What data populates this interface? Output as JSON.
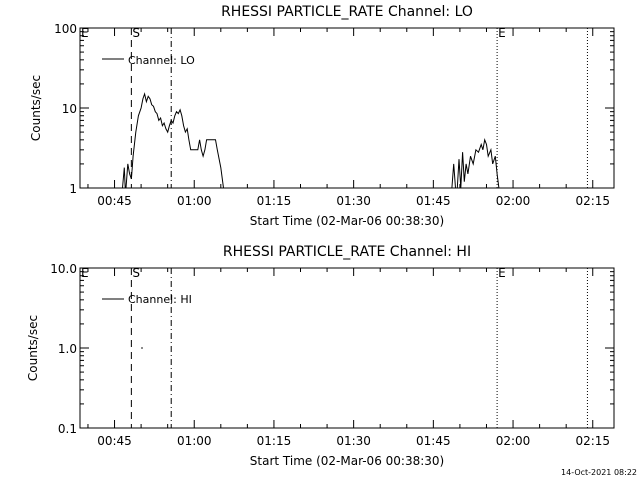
{
  "chart_data": [
    {
      "type": "line",
      "title": "RHESSI PARTICLE_RATE Channel: LO",
      "xlabel": "Start Time (02-Mar-06 00:38:30)",
      "ylabel": "Counts/sec",
      "yscale": "log",
      "ylim": [
        1,
        100
      ],
      "y_ticks": [
        "1",
        "10",
        "100"
      ],
      "x_ticks": [
        "00:45",
        "01:00",
        "01:15",
        "01:30",
        "01:45",
        "02:00",
        "02:15"
      ],
      "xlim": [
        "00:38:30",
        "02:19:00"
      ],
      "legend": "Channel: LO",
      "legend_position": "top-left",
      "markers": [
        {
          "label": "E",
          "time": "00:38:30",
          "style": "none"
        },
        {
          "label": "S",
          "time": "00:48:10",
          "style": "dashed"
        },
        {
          "label": "",
          "time": "00:55:40",
          "style": "dash-dot"
        },
        {
          "label": "E",
          "time": "01:57:00",
          "style": "dotted"
        },
        {
          "label": "",
          "time": "02:14:00",
          "style": "dotted"
        }
      ],
      "series": [
        {
          "name": "Channel: LO",
          "segments": [
            [
              [
                "00:46:30",
                1
              ],
              [
                "00:46:50",
                1.8
              ],
              [
                "00:47:00",
                1
              ],
              [
                "00:47:10",
                1
              ],
              [
                "00:47:30",
                2
              ],
              [
                "00:47:50",
                1.5
              ],
              [
                "00:48:10",
                1.3
              ],
              [
                "00:48:30",
                2.5
              ],
              [
                "00:49:00",
                5
              ],
              [
                "00:49:30",
                8
              ],
              [
                "00:50:00",
                10
              ],
              [
                "00:50:20",
                13
              ],
              [
                "00:50:40",
                15
              ],
              [
                "00:51:00",
                12
              ],
              [
                "00:51:20",
                14
              ],
              [
                "00:51:40",
                13
              ],
              [
                "00:52:00",
                11
              ],
              [
                "00:52:20",
                10.5
              ],
              [
                "00:52:40",
                9
              ],
              [
                "00:53:00",
                8.5
              ],
              [
                "00:53:20",
                7
              ],
              [
                "00:53:40",
                7.5
              ],
              [
                "00:54:00",
                6
              ],
              [
                "00:54:20",
                6.5
              ],
              [
                "00:54:40",
                5.5
              ],
              [
                "00:55:00",
                5
              ],
              [
                "00:55:20",
                6
              ],
              [
                "00:55:40",
                7
              ],
              [
                "00:56:00",
                6.5
              ],
              [
                "00:56:20",
                8
              ],
              [
                "00:56:40",
                9
              ],
              [
                "00:57:00",
                8.5
              ],
              [
                "00:57:20",
                9.5
              ],
              [
                "00:57:40",
                8
              ],
              [
                "00:58:00",
                6
              ],
              [
                "00:58:20",
                5
              ],
              [
                "00:58:40",
                5.5
              ],
              [
                "00:59:00",
                4
              ],
              [
                "00:59:20",
                3
              ],
              [
                "01:00:00",
                3
              ],
              [
                "01:00:40",
                3
              ],
              [
                "01:01:00",
                4
              ],
              [
                "01:01:20",
                3
              ],
              [
                "01:01:40",
                2.5
              ],
              [
                "01:02:00",
                3
              ],
              [
                "01:02:20",
                4
              ],
              [
                "01:03:20",
                4
              ],
              [
                "01:04:00",
                4
              ],
              [
                "01:04:20",
                3
              ],
              [
                "01:05:00",
                1.8
              ],
              [
                "01:05:30",
                1
              ]
            ],
            [
              [
                "01:48:30",
                1
              ],
              [
                "01:48:50",
                2
              ],
              [
                "01:49:10",
                1
              ],
              [
                "01:49:30",
                1
              ],
              [
                "01:49:50",
                2.3
              ],
              [
                "01:50:10",
                1
              ],
              [
                "01:50:30",
                2.8
              ],
              [
                "01:50:50",
                1.2
              ],
              [
                "01:51:10",
                2
              ],
              [
                "01:51:30",
                1.5
              ],
              [
                "01:52:00",
                2.5
              ],
              [
                "01:52:30",
                2
              ],
              [
                "01:53:00",
                3
              ],
              [
                "01:53:30",
                2.8
              ],
              [
                "01:54:00",
                3.5
              ],
              [
                "01:54:20",
                3
              ],
              [
                "01:54:40",
                4
              ],
              [
                "01:55:00",
                3.5
              ],
              [
                "01:55:20",
                2.5
              ],
              [
                "01:55:50",
                3
              ],
              [
                "01:56:10",
                2
              ],
              [
                "01:56:40",
                2.5
              ],
              [
                "01:57:00",
                1.5
              ],
              [
                "01:57:20",
                1
              ]
            ]
          ]
        }
      ]
    },
    {
      "type": "line",
      "title": "RHESSI PARTICLE_RATE Channel: HI",
      "xlabel": "Start Time (02-Mar-06 00:38:30)",
      "ylabel": "Counts/sec",
      "yscale": "log",
      "ylim": [
        0.1,
        10
      ],
      "y_ticks": [
        "0.1",
        "1.0",
        "10.0"
      ],
      "x_ticks": [
        "00:45",
        "01:00",
        "01:15",
        "01:30",
        "01:45",
        "02:00",
        "02:15"
      ],
      "xlim": [
        "00:38:30",
        "02:19:00"
      ],
      "legend": "Channel: HI",
      "legend_position": "top-left",
      "markers": [
        {
          "label": "E",
          "time": "00:38:30",
          "style": "none"
        },
        {
          "label": "S",
          "time": "00:48:10",
          "style": "dashed"
        },
        {
          "label": "",
          "time": "00:55:40",
          "style": "dash-dot"
        },
        {
          "label": "E",
          "time": "01:57:00",
          "style": "dotted"
        },
        {
          "label": "",
          "time": "02:14:00",
          "style": "dotted"
        }
      ],
      "series": [
        {
          "name": "Channel: HI",
          "segments": [
            [
              [
                "00:50:00",
                1.0
              ],
              [
                "00:50:20",
                1.0
              ]
            ]
          ]
        }
      ]
    }
  ],
  "footer": {
    "timestamp": "14-Oct-2021 08:22"
  }
}
